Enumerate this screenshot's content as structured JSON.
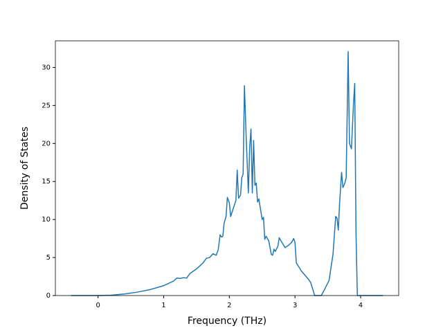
{
  "chart_data": {
    "type": "line",
    "x_label": "Frequency (THz)",
    "y_label": "Density of States",
    "xlim": [
      -0.65,
      4.58
    ],
    "ylim": [
      0,
      33.5
    ],
    "xticks": [
      0,
      1,
      2,
      3,
      4
    ],
    "yticks": [
      0,
      5,
      10,
      15,
      20,
      25,
      30
    ],
    "grid": false,
    "x": [
      -0.41,
      0,
      0.2,
      0.4,
      0.6,
      0.8,
      1.0,
      1.15,
      1.2,
      1.25,
      1.3,
      1.35,
      1.4,
      1.5,
      1.6,
      1.65,
      1.7,
      1.75,
      1.8,
      1.83,
      1.86,
      1.88,
      1.9,
      1.92,
      1.95,
      1.97,
      2.0,
      2.02,
      2.05,
      2.1,
      2.12,
      2.14,
      2.17,
      2.19,
      2.21,
      2.23,
      2.26,
      2.29,
      2.31,
      2.33,
      2.35,
      2.37,
      2.39,
      2.41,
      2.43,
      2.45,
      2.5,
      2.52,
      2.54,
      2.56,
      2.6,
      2.64,
      2.66,
      2.68,
      2.7,
      2.74,
      2.76,
      2.8,
      2.85,
      2.9,
      2.95,
      2.98,
      3.0,
      3.02,
      3.1,
      3.2,
      3.24,
      3.3,
      3.4,
      3.45,
      3.52,
      3.58,
      3.62,
      3.64,
      3.66,
      3.68,
      3.71,
      3.73,
      3.76,
      3.78,
      3.81,
      3.83,
      3.86,
      3.89,
      3.91,
      3.93,
      3.95,
      4.34
    ],
    "series": [
      {
        "color": "#1f77b4",
        "values": [
          0,
          0,
          0.05,
          0.2,
          0.45,
          0.8,
          1.3,
          1.9,
          2.3,
          2.25,
          2.35,
          2.3,
          2.9,
          3.5,
          4.3,
          4.9,
          5.0,
          5.5,
          5.3,
          6.0,
          8.0,
          7.7,
          7.8,
          9.5,
          10.4,
          12.9,
          12.2,
          10.4,
          11.2,
          12.5,
          16.5,
          12.8,
          13.2,
          15.5,
          16.0,
          27.6,
          20.0,
          13.5,
          19.5,
          21.9,
          13.5,
          20.4,
          14.5,
          14.8,
          12.3,
          12.7,
          10.0,
          10.3,
          7.4,
          7.8,
          7.2,
          5.4,
          5.3,
          6.1,
          5.8,
          6.5,
          7.6,
          7.0,
          6.3,
          6.6,
          7.0,
          7.5,
          7.0,
          4.3,
          3.2,
          2.2,
          1.7,
          0,
          0,
          0.8,
          2.0,
          5.5,
          10.4,
          10.2,
          8.6,
          12.2,
          16.2,
          14.2,
          14.8,
          15.5,
          32.1,
          20.0,
          19.3,
          25.0,
          27.9,
          8.0,
          0,
          0
        ]
      }
    ]
  }
}
